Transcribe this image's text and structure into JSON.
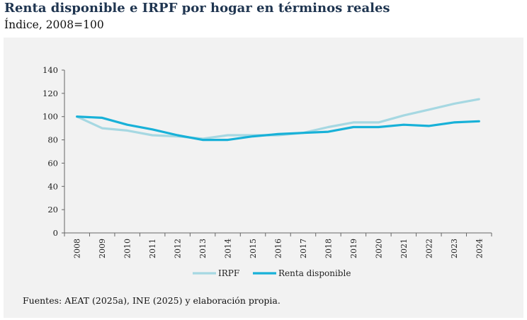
{
  "header": {
    "title": "Renta disponible e IRPF por hogar en términos reales",
    "subtitle": "Índice, 2008=100"
  },
  "footer": {
    "source": "Fuentes: AEAT (2025a), INE (2025) y elaboración propia."
  },
  "chart_data": {
    "type": "line",
    "categories": [
      "2008",
      "2009",
      "2010",
      "2011",
      "2012",
      "2013",
      "2014",
      "2015",
      "2016",
      "2017",
      "2018",
      "2019",
      "2020",
      "2021",
      "2022",
      "2023",
      "2024"
    ],
    "series": [
      {
        "name": "IRPF",
        "color": "#a6d8e2",
        "values": [
          100,
          90,
          88,
          84,
          83,
          81,
          84,
          84,
          84,
          86,
          91,
          95,
          95,
          101,
          106,
          111,
          115
        ]
      },
      {
        "name": "Renta disponible",
        "color": "#18b1d8",
        "values": [
          100,
          99,
          93,
          89,
          84,
          80,
          80,
          83,
          85,
          86,
          87,
          91,
          91,
          93,
          92,
          95,
          96
        ]
      }
    ],
    "title": "Renta disponible e IRPF por hogar en términos reales",
    "subtitle": "Índice, 2008=100",
    "ylim": [
      0,
      140
    ],
    "yticks": [
      0,
      20,
      40,
      60,
      80,
      100,
      120,
      140
    ],
    "grid": false,
    "legend_position": "bottom"
  }
}
